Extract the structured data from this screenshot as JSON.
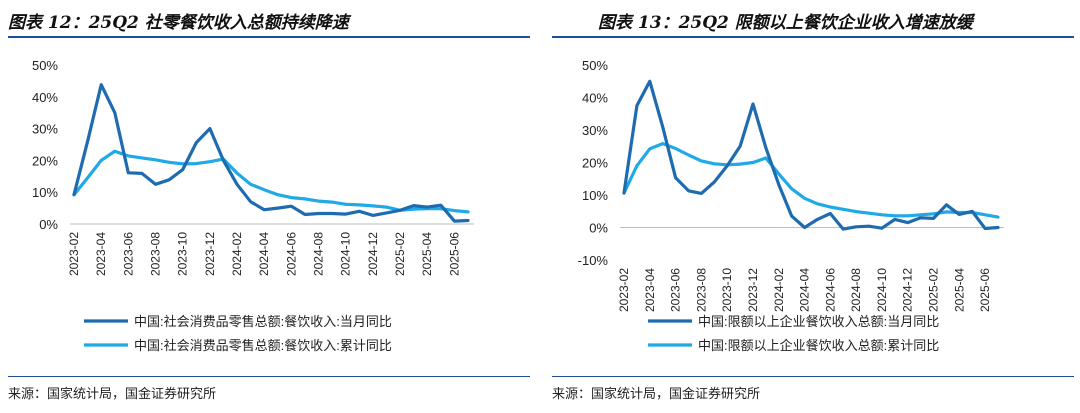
{
  "left": {
    "title": "图表 12：25Q2 社零餐饮收入总额持续降速",
    "source": "来源：国家统计局，国金证券研究所",
    "chart_data": {
      "type": "line",
      "ylim": [
        0,
        50
      ],
      "yticks": [
        0,
        10,
        20,
        30,
        40,
        50
      ],
      "ytick_labels": [
        "0%",
        "10%",
        "20%",
        "30%",
        "40%",
        "50%"
      ],
      "xtick_labels": [
        "2023-02",
        "2023-04",
        "2023-06",
        "2023-08",
        "2023-10",
        "2023-12",
        "2024-02",
        "2024-04",
        "2024-06",
        "2024-08",
        "2024-10",
        "2024-12",
        "2025-02",
        "2025-04",
        "2025-06"
      ],
      "series": [
        {
          "name": "中国:社会消费品零售总额:餐饮收入:当月同比",
          "color": "#1e6bb0",
          "values": [
            9.2,
            26,
            43.8,
            35,
            16.1,
            15.9,
            12.5,
            13.9,
            17.1,
            25.6,
            30,
            20,
            12.5,
            7,
            4.5,
            5,
            5.6,
            3,
            3.3,
            3.3,
            3.1,
            4,
            2.7,
            3.5,
            4.3,
            5.8,
            5.3,
            5.9,
            0.9,
            1.1
          ]
        },
        {
          "name": "中国:社会消费品零售总额:餐饮收入:累计同比",
          "color": "#1fa9e6",
          "values": [
            9.2,
            14.5,
            20,
            22.9,
            21.4,
            20.8,
            20.2,
            19.4,
            18.9,
            19,
            19.6,
            20.4,
            16,
            12.5,
            10.8,
            9.2,
            8.3,
            7.9,
            7.2,
            6.9,
            6.2,
            6,
            5.7,
            5.3,
            4.3,
            4.7,
            4.8,
            4.8,
            4.2,
            3.8
          ]
        }
      ]
    }
  },
  "right": {
    "title": "图表 13：25Q2 限额以上餐饮企业收入增速放缓",
    "source": "来源：国家统计局，国金证券研究所",
    "chart_data": {
      "type": "line",
      "ylim": [
        -10,
        50
      ],
      "yticks": [
        -10,
        0,
        10,
        20,
        30,
        40,
        50
      ],
      "ytick_labels": [
        "-10%",
        "0%",
        "10%",
        "20%",
        "30%",
        "40%",
        "50%"
      ],
      "xtick_labels": [
        "2023-02",
        "2023-04",
        "2023-06",
        "2023-08",
        "2023-10",
        "2023-12",
        "2024-02",
        "2024-04",
        "2024-06",
        "2024-08",
        "2024-10",
        "2024-12",
        "2025-02",
        "2025-04",
        "2025-06"
      ],
      "series": [
        {
          "name": "中国:限额以上企业餐饮收入总额:当月同比",
          "color": "#1e6bb0",
          "values": [
            10.6,
            37.5,
            45,
            31,
            15.3,
            11.3,
            10.5,
            14,
            19,
            25,
            38,
            24.5,
            13.2,
            3.5,
            0,
            2.5,
            4.3,
            -0.5,
            0.2,
            0.4,
            -0.2,
            2.5,
            1.5,
            3,
            2.8,
            7,
            4,
            5,
            -0.3,
            0
          ]
        },
        {
          "name": "中国:限额以上企业餐饮收入总额:累计同比",
          "color": "#1fa9e6",
          "values": [
            10.6,
            19,
            24.2,
            25.8,
            24.3,
            22.3,
            20.5,
            19.6,
            19.3,
            19.5,
            20,
            21.4,
            16.5,
            11.9,
            9,
            7.3,
            6.3,
            5.6,
            4.9,
            4.4,
            3.9,
            3.6,
            3.6,
            3.9,
            4.2,
            4.8,
            4.6,
            4.6,
            3.9,
            3.2
          ]
        }
      ]
    }
  }
}
